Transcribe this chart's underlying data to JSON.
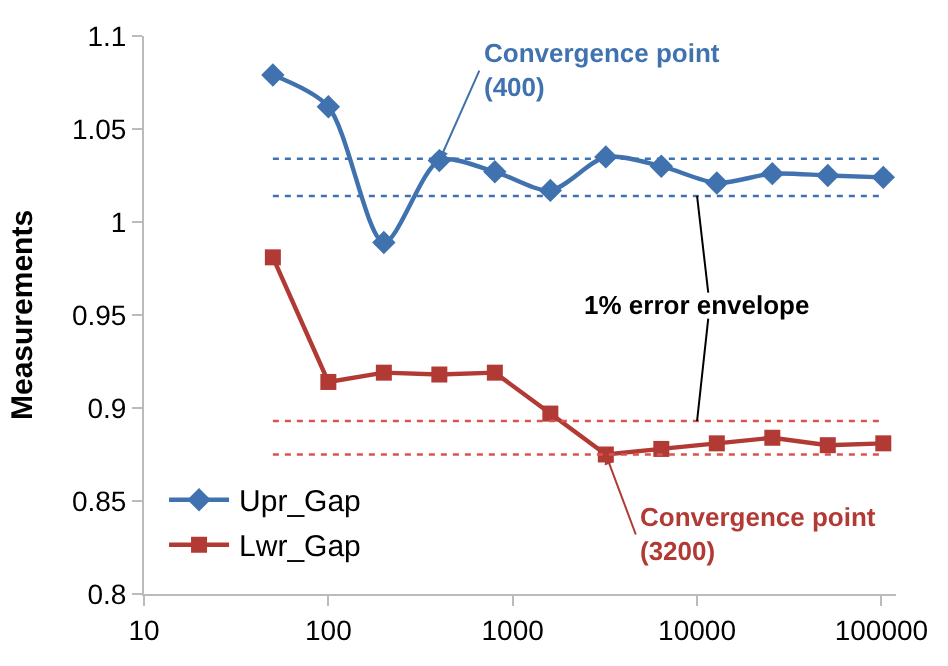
{
  "chart_data": {
    "type": "line",
    "ylabel": "Measurements",
    "x": [
      50,
      100,
      200,
      400,
      800,
      1600,
      3200,
      6400,
      12800,
      25600,
      51200,
      102400
    ],
    "series": [
      {
        "name": "Upr_Gap",
        "color": "#3f72af",
        "marker": "diamond",
        "values": [
          1.079,
          1.062,
          0.989,
          1.033,
          1.027,
          1.017,
          1.035,
          1.03,
          1.021,
          1.026,
          1.025,
          1.024
        ]
      },
      {
        "name": "Lwr_Gap",
        "color": "#b23a35",
        "marker": "square",
        "values": [
          0.981,
          0.914,
          0.919,
          0.918,
          0.919,
          0.897,
          0.875,
          0.878,
          0.881,
          0.884,
          0.88,
          0.881
        ]
      }
    ],
    "log": "x",
    "xlim": [
      10,
      120000
    ],
    "xticks": [
      10,
      100,
      1000,
      10000,
      100000
    ],
    "ylim": [
      0.8,
      1.1
    ],
    "yticks": [
      0.8,
      0.85,
      0.9,
      0.95,
      1,
      1.05,
      1.1
    ],
    "ref_lines": [
      {
        "axis": "y",
        "value": 1.034,
        "color": "#3f72af",
        "line_style": "dotted"
      },
      {
        "axis": "y",
        "value": 1.014,
        "color": "#3f72af",
        "line_style": "dotted"
      },
      {
        "axis": "y",
        "value": 0.893,
        "color": "#d9534f",
        "line_style": "dotted"
      },
      {
        "axis": "y",
        "value": 0.875,
        "color": "#d9534f",
        "line_style": "dotted"
      }
    ],
    "annotations": [
      {
        "text": "Convergence point\n(400)",
        "x": 400,
        "y": 1.033
      },
      {
        "text": "Convergence point\n(3200)",
        "x": 3200,
        "y": 0.875
      },
      {
        "text": "1% error envelope",
        "x": 10000,
        "y": 1.014
      }
    ],
    "legend": "bottom left"
  }
}
